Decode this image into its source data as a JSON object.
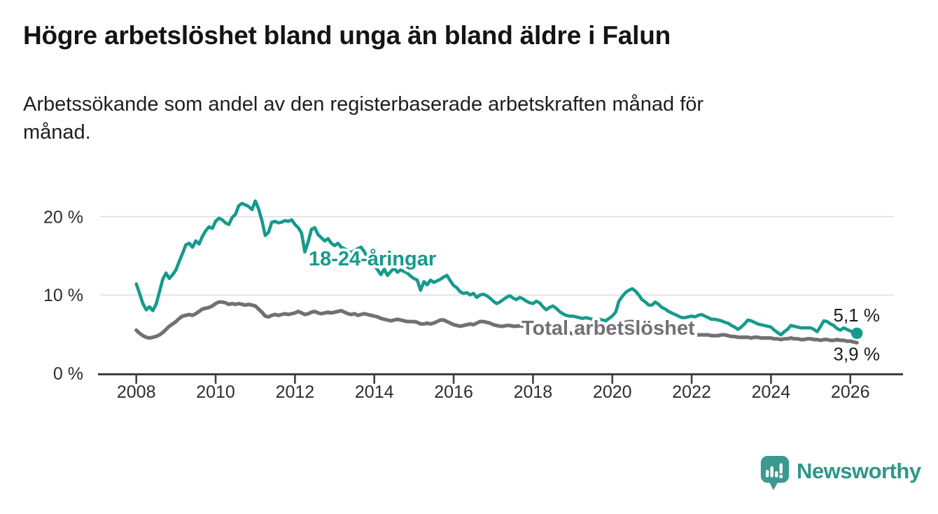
{
  "branding": {
    "wordmark": "Newsworthy",
    "logo_color": "#3b998f",
    "wordmark_color": "#2e968c"
  },
  "chart_data": {
    "type": "line",
    "title": "Högre arbetslöshet bland unga än bland äldre i Falun",
    "subtitle": "Arbetssökande som andel av den registerbaserade arbetskraften månad för månad.",
    "subtitle_lines": [
      "Arbetssökande som andel av den registerbaserade arbetskraften månad för",
      "månad."
    ],
    "grid": "horizontal",
    "x_axis": {
      "unit": "month",
      "start": "2008-01",
      "end": "2026-03",
      "ticks": [
        2008,
        2010,
        2012,
        2014,
        2016,
        2018,
        2020,
        2022,
        2024,
        2026
      ]
    },
    "y_axis": {
      "range": [
        0,
        23
      ],
      "ticks": [
        {
          "value": 0,
          "label": "0 %"
        },
        {
          "value": 10,
          "label": "10 %"
        },
        {
          "value": 20,
          "label": "20 %"
        }
      ]
    },
    "series": [
      {
        "name": "18-24-åringar",
        "color": "#169a8d",
        "end_value_label": "5,1 %",
        "end_marker": true,
        "values": [
          11.4,
          10.2,
          8.9,
          8.1,
          8.5,
          8.0,
          8.8,
          10.4,
          12.0,
          12.8,
          12.1,
          12.6,
          13.2,
          14.3,
          15.3,
          16.4,
          16.6,
          16.1,
          16.9,
          16.5,
          17.5,
          18.2,
          18.7,
          18.5,
          19.4,
          19.8,
          19.6,
          19.2,
          19.0,
          19.9,
          20.3,
          21.4,
          21.7,
          21.5,
          21.3,
          20.9,
          22.0,
          21.0,
          19.5,
          17.6,
          18.0,
          19.3,
          19.4,
          19.2,
          19.3,
          19.5,
          19.4,
          19.6,
          19.0,
          18.6,
          17.9,
          15.5,
          16.8,
          18.4,
          18.6,
          17.7,
          17.3,
          16.9,
          17.2,
          16.6,
          16.3,
          16.6,
          16.1,
          15.9,
          15.6,
          15.4,
          15.7,
          15.9,
          16.1,
          15.5,
          14.7,
          14.1,
          13.8,
          13.2,
          12.6,
          13.3,
          12.5,
          13.0,
          13.4,
          12.9,
          13.2,
          13.0,
          12.8,
          12.4,
          12.1,
          11.9,
          10.6,
          11.7,
          11.3,
          11.9,
          11.6,
          11.8,
          12.0,
          12.3,
          12.5,
          11.8,
          11.2,
          10.9,
          10.4,
          10.2,
          10.3,
          10.0,
          10.2,
          9.7,
          10.0,
          10.1,
          9.9,
          9.6,
          9.2,
          8.9,
          9.1,
          9.4,
          9.7,
          9.9,
          9.6,
          9.4,
          9.7,
          9.5,
          9.2,
          9.0,
          8.9,
          9.2,
          9.0,
          8.5,
          8.1,
          8.4,
          8.6,
          8.3,
          7.9,
          7.6,
          7.4,
          7.3,
          7.3,
          7.2,
          7.1,
          7.0,
          7.1,
          7.0,
          6.9,
          6.8,
          6.9,
          6.8,
          6.7,
          7.0,
          7.3,
          7.8,
          9.2,
          9.8,
          10.3,
          10.6,
          10.8,
          10.5,
          10.0,
          9.4,
          9.1,
          8.7,
          8.7,
          9.1,
          8.8,
          8.4,
          8.2,
          7.9,
          7.7,
          7.5,
          7.3,
          7.1,
          7.1,
          7.2,
          7.3,
          7.2,
          7.4,
          7.5,
          7.3,
          7.1,
          6.9,
          6.9,
          6.8,
          6.7,
          6.5,
          6.4,
          6.1,
          5.9,
          5.6,
          5.9,
          6.3,
          6.8,
          6.7,
          6.5,
          6.3,
          6.2,
          6.1,
          6.0,
          5.9,
          5.5,
          5.2,
          4.9,
          5.3,
          5.6,
          6.1,
          6.0,
          5.9,
          5.8,
          5.8,
          5.8,
          5.8,
          5.6,
          5.3,
          6.0,
          6.7,
          6.6,
          6.3,
          6.1,
          5.7,
          5.5,
          5.8,
          5.6,
          5.4,
          5.2,
          5.1
        ]
      },
      {
        "name": "Total arbetslöshet",
        "color": "#717175",
        "end_value_label": "3,9 %",
        "end_marker": false,
        "values": [
          5.5,
          5.1,
          4.8,
          4.6,
          4.5,
          4.6,
          4.7,
          4.9,
          5.2,
          5.6,
          6.0,
          6.3,
          6.6,
          7.0,
          7.3,
          7.4,
          7.5,
          7.4,
          7.6,
          7.9,
          8.2,
          8.3,
          8.4,
          8.6,
          8.9,
          9.1,
          9.1,
          9.0,
          8.8,
          8.9,
          8.8,
          8.9,
          8.8,
          8.7,
          8.8,
          8.7,
          8.6,
          8.2,
          7.8,
          7.3,
          7.2,
          7.4,
          7.5,
          7.4,
          7.5,
          7.6,
          7.5,
          7.6,
          7.7,
          7.9,
          7.7,
          7.5,
          7.6,
          7.8,
          7.9,
          7.7,
          7.6,
          7.7,
          7.8,
          7.7,
          7.8,
          7.9,
          8.0,
          7.8,
          7.6,
          7.5,
          7.6,
          7.4,
          7.5,
          7.6,
          7.5,
          7.4,
          7.3,
          7.2,
          7.0,
          6.9,
          6.8,
          6.7,
          6.8,
          6.9,
          6.8,
          6.7,
          6.6,
          6.6,
          6.6,
          6.5,
          6.3,
          6.3,
          6.4,
          6.3,
          6.4,
          6.6,
          6.8,
          6.8,
          6.6,
          6.4,
          6.2,
          6.1,
          6.0,
          6.1,
          6.2,
          6.3,
          6.2,
          6.4,
          6.6,
          6.6,
          6.5,
          6.4,
          6.2,
          6.1,
          6.0,
          6.0,
          6.1,
          6.1,
          6.0,
          6.0,
          6.1,
          6.0,
          6.0,
          5.9,
          5.8,
          5.7,
          5.6,
          5.5,
          5.4,
          5.4,
          5.3,
          5.3,
          5.2,
          5.2,
          5.1,
          5.1,
          5.1,
          5.0,
          5.0,
          4.9,
          4.9,
          5.0,
          5.0,
          5.1,
          5.1,
          5.2,
          5.2,
          5.3,
          5.4,
          5.5,
          5.9,
          6.3,
          6.5,
          6.6,
          6.6,
          6.5,
          6.4,
          6.3,
          6.2,
          6.1,
          6.0,
          5.9,
          5.8,
          5.7,
          5.6,
          5.5,
          5.4,
          5.3,
          5.2,
          5.1,
          5.1,
          5.0,
          5.0,
          5.0,
          4.9,
          4.9,
          4.9,
          4.9,
          4.8,
          4.8,
          4.8,
          4.9,
          4.9,
          4.8,
          4.7,
          4.7,
          4.6,
          4.6,
          4.6,
          4.6,
          4.5,
          4.6,
          4.6,
          4.5,
          4.5,
          4.5,
          4.5,
          4.4,
          4.4,
          4.3,
          4.4,
          4.4,
          4.5,
          4.4,
          4.4,
          4.3,
          4.3,
          4.4,
          4.4,
          4.3,
          4.3,
          4.2,
          4.3,
          4.3,
          4.2,
          4.2,
          4.3,
          4.2,
          4.2,
          4.1,
          4.1,
          4.0,
          3.9
        ]
      }
    ],
    "colors": {
      "grid": "#dcdcdc",
      "axis": "#3f3f43",
      "tick_text": "#2d2d2d"
    }
  }
}
